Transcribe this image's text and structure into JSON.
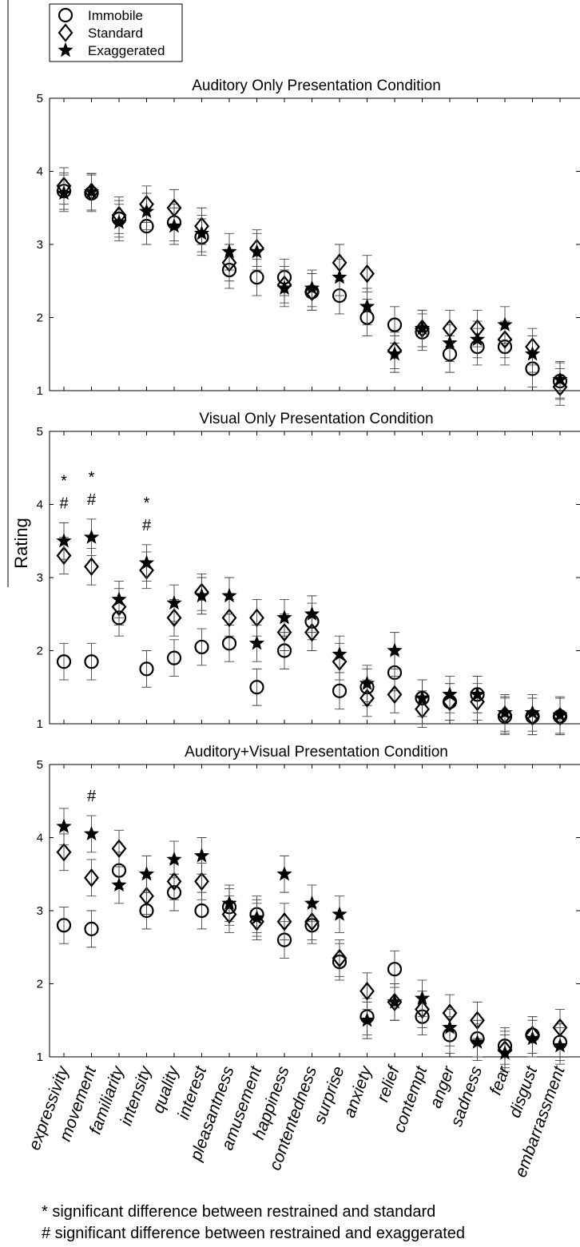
{
  "chart_data": {
    "type": "scatter",
    "ylabel": "Rating",
    "ylim": [
      1,
      5
    ],
    "yticks": [
      "1",
      "2",
      "3",
      "4",
      "5"
    ],
    "categories": [
      "expressivity",
      "movement",
      "familiarity",
      "intensity",
      "quality",
      "interest",
      "pleasantness",
      "amusement",
      "happiness",
      "contentedness",
      "surprise",
      "anxiety",
      "relief",
      "contempt",
      "anger",
      "sadness",
      "fear",
      "disgust",
      "embarrassment"
    ],
    "legend": {
      "placement": "top-left",
      "items": [
        {
          "name": "Immobile",
          "marker": "circle"
        },
        {
          "name": "Standard",
          "marker": "diamond"
        },
        {
          "name": "Exaggerated",
          "marker": "star"
        }
      ]
    },
    "error_bar_half_width": 0.25,
    "panels": [
      {
        "title": "Auditory Only Presentation Condition",
        "series": [
          {
            "name": "Immobile",
            "values": [
              3.73,
              3.7,
              3.35,
              3.25,
              3.3,
              3.1,
              2.65,
              2.55,
              2.55,
              2.35,
              2.3,
              2.0,
              1.9,
              1.8,
              1.5,
              1.6,
              1.6,
              1.3,
              1.13
            ]
          },
          {
            "name": "Standard",
            "values": [
              3.8,
              3.72,
              3.4,
              3.55,
              3.5,
              3.25,
              2.75,
              2.95,
              2.45,
              2.35,
              2.75,
              2.6,
              1.55,
              1.85,
              1.85,
              1.85,
              1.7,
              1.6,
              1.05
            ]
          },
          {
            "name": "Exaggerated",
            "values": [
              3.7,
              3.72,
              3.3,
              3.45,
              3.25,
              3.15,
              2.9,
              2.9,
              2.4,
              2.4,
              2.55,
              2.15,
              1.5,
              1.85,
              1.65,
              1.7,
              1.9,
              1.5,
              1.15
            ]
          }
        ],
        "significance": []
      },
      {
        "title": "Visual Only Presentation Condition",
        "series": [
          {
            "name": "Immobile",
            "values": [
              1.85,
              1.85,
              2.45,
              1.75,
              1.9,
              2.05,
              2.1,
              1.5,
              2.0,
              2.4,
              1.45,
              1.5,
              1.7,
              1.35,
              1.3,
              1.4,
              1.1,
              1.1,
              1.1
            ]
          },
          {
            "name": "Standard",
            "values": [
              3.3,
              3.15,
              2.6,
              3.1,
              2.45,
              2.8,
              2.45,
              2.45,
              2.25,
              2.25,
              1.85,
              1.35,
              1.4,
              1.2,
              1.3,
              1.3,
              1.12,
              1.1,
              1.1
            ]
          },
          {
            "name": "Exaggerated",
            "values": [
              3.5,
              3.55,
              2.7,
              3.2,
              2.65,
              2.75,
              2.75,
              2.1,
              2.45,
              2.5,
              1.95,
              1.55,
              2.0,
              1.35,
              1.4,
              1.4,
              1.15,
              1.15,
              1.12
            ]
          }
        ],
        "significance": [
          {
            "category": "expressivity",
            "marks": [
              "*",
              "#"
            ]
          },
          {
            "category": "movement",
            "marks": [
              "*",
              "#"
            ]
          },
          {
            "category": "intensity",
            "marks": [
              "*",
              "#"
            ]
          }
        ]
      },
      {
        "title": "Auditory+Visual Presentation Condition",
        "series": [
          {
            "name": "Immobile",
            "values": [
              2.8,
              2.75,
              3.55,
              3.0,
              3.25,
              3.0,
              3.05,
              2.95,
              2.6,
              2.8,
              2.3,
              1.55,
              2.2,
              1.55,
              1.3,
              1.25,
              1.15,
              1.3,
              1.2
            ]
          },
          {
            "name": "Standard",
            "values": [
              3.8,
              3.45,
              3.85,
              3.2,
              3.4,
              3.4,
              2.95,
              2.85,
              2.85,
              2.85,
              2.35,
              1.9,
              1.75,
              1.65,
              1.6,
              1.5,
              1.1,
              1.3,
              1.4
            ]
          },
          {
            "name": "Exaggerated",
            "values": [
              4.15,
              4.05,
              3.35,
              3.5,
              3.7,
              3.75,
              3.1,
              2.9,
              3.5,
              3.1,
              2.95,
              1.5,
              1.75,
              1.8,
              1.4,
              1.2,
              1.05,
              1.25,
              1.15
            ]
          }
        ],
        "significance": [
          {
            "category": "movement",
            "marks": [
              "#"
            ]
          }
        ]
      }
    ],
    "footnotes": [
      "* significant difference between restrained and standard",
      "# significant difference between restrained and exaggerated"
    ]
  }
}
